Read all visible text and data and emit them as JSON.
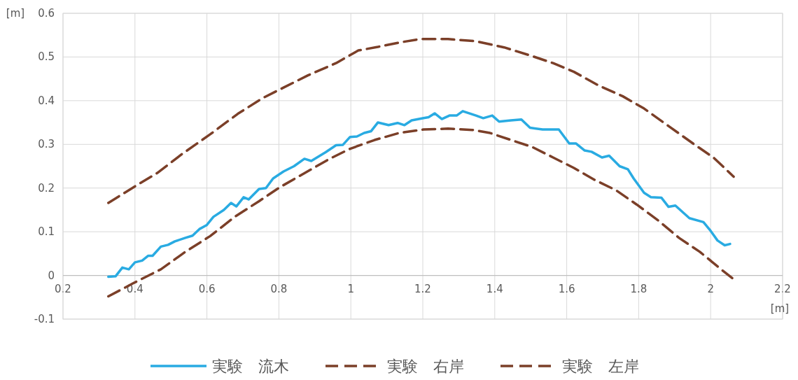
{
  "chart_data": {
    "type": "line",
    "xlabel": "[m]",
    "ylabel": "[m]",
    "xlim": [
      0.2,
      2.2
    ],
    "ylim": [
      -0.1,
      0.6
    ],
    "xticks": [
      0.2,
      0.4,
      0.6,
      0.8,
      1,
      1.2,
      1.4,
      1.6,
      1.8,
      2,
      2.2
    ],
    "yticks": [
      -0.1,
      0,
      0.1,
      0.2,
      0.3,
      0.4,
      0.5,
      0.6
    ],
    "grid": true,
    "legend": "bottom",
    "marker": "none",
    "series": [
      {
        "name": "実験　流木",
        "color": "#29abe2",
        "line_style": "solid",
        "x": [
          0.326,
          0.346,
          0.365,
          0.383,
          0.4,
          0.42,
          0.437,
          0.449,
          0.472,
          0.492,
          0.511,
          0.54,
          0.56,
          0.579,
          0.599,
          0.618,
          0.647,
          0.667,
          0.682,
          0.702,
          0.716,
          0.745,
          0.764,
          0.784,
          0.813,
          0.842,
          0.871,
          0.89,
          0.91,
          0.93,
          0.959,
          0.978,
          0.998,
          1.017,
          1.037,
          1.056,
          1.075,
          1.105,
          1.13,
          1.149,
          1.169,
          1.202,
          1.216,
          1.233,
          1.253,
          1.274,
          1.294,
          1.311,
          1.348,
          1.368,
          1.393,
          1.412,
          1.445,
          1.474,
          1.498,
          1.533,
          1.562,
          1.578,
          1.607,
          1.626,
          1.65,
          1.669,
          1.698,
          1.718,
          1.747,
          1.77,
          1.786,
          1.815,
          1.834,
          1.863,
          1.883,
          1.902,
          1.941,
          1.98,
          2.0,
          2.019,
          2.039,
          2.054
        ],
        "values": [
          -0.003,
          -0.002,
          0.018,
          0.014,
          0.03,
          0.034,
          0.045,
          0.045,
          0.066,
          0.07,
          0.078,
          0.086,
          0.091,
          0.106,
          0.115,
          0.134,
          0.15,
          0.166,
          0.158,
          0.179,
          0.174,
          0.198,
          0.2,
          0.222,
          0.238,
          0.25,
          0.267,
          0.262,
          0.272,
          0.282,
          0.298,
          0.299,
          0.317,
          0.318,
          0.326,
          0.33,
          0.35,
          0.344,
          0.349,
          0.344,
          0.355,
          0.36,
          0.362,
          0.371,
          0.358,
          0.366,
          0.366,
          0.376,
          0.366,
          0.36,
          0.366,
          0.352,
          0.355,
          0.357,
          0.338,
          0.334,
          0.334,
          0.334,
          0.302,
          0.302,
          0.286,
          0.283,
          0.27,
          0.274,
          0.25,
          0.243,
          0.222,
          0.189,
          0.179,
          0.178,
          0.157,
          0.16,
          0.131,
          0.122,
          0.102,
          0.08,
          0.069,
          0.072
        ]
      },
      {
        "name": "実験　右岸",
        "color": "#7b3f28",
        "line_style": "dashed",
        "x": [
          0.326,
          0.404,
          0.463,
          0.531,
          0.609,
          0.686,
          0.755,
          0.813,
          0.881,
          0.959,
          1.021,
          1.075,
          1.134,
          1.192,
          1.27,
          1.348,
          1.426,
          1.504,
          1.562,
          1.62,
          1.688,
          1.756,
          1.815,
          1.883,
          1.951,
          2.009,
          2.064
        ],
        "values": [
          0.166,
          0.206,
          0.235,
          0.278,
          0.323,
          0.37,
          0.406,
          0.43,
          0.458,
          0.486,
          0.515,
          0.523,
          0.533,
          0.541,
          0.541,
          0.536,
          0.522,
          0.502,
          0.486,
          0.466,
          0.435,
          0.41,
          0.382,
          0.342,
          0.302,
          0.269,
          0.226
        ]
      },
      {
        "name": "実験　左岸",
        "color": "#7b3f28",
        "line_style": "dashed",
        "x": [
          0.326,
          0.395,
          0.472,
          0.54,
          0.609,
          0.677,
          0.745,
          0.803,
          0.871,
          0.939,
          0.998,
          1.066,
          1.134,
          1.202,
          1.27,
          1.338,
          1.387,
          1.445,
          1.504,
          1.562,
          1.62,
          1.679,
          1.737,
          1.795,
          1.854,
          1.912,
          1.97,
          2.029,
          2.06
        ],
        "values": [
          -0.048,
          -0.018,
          0.014,
          0.054,
          0.09,
          0.134,
          0.17,
          0.202,
          0.234,
          0.266,
          0.29,
          0.31,
          0.326,
          0.334,
          0.336,
          0.333,
          0.326,
          0.31,
          0.294,
          0.27,
          0.246,
          0.218,
          0.195,
          0.162,
          0.126,
          0.086,
          0.054,
          0.014,
          -0.006
        ]
      }
    ]
  }
}
